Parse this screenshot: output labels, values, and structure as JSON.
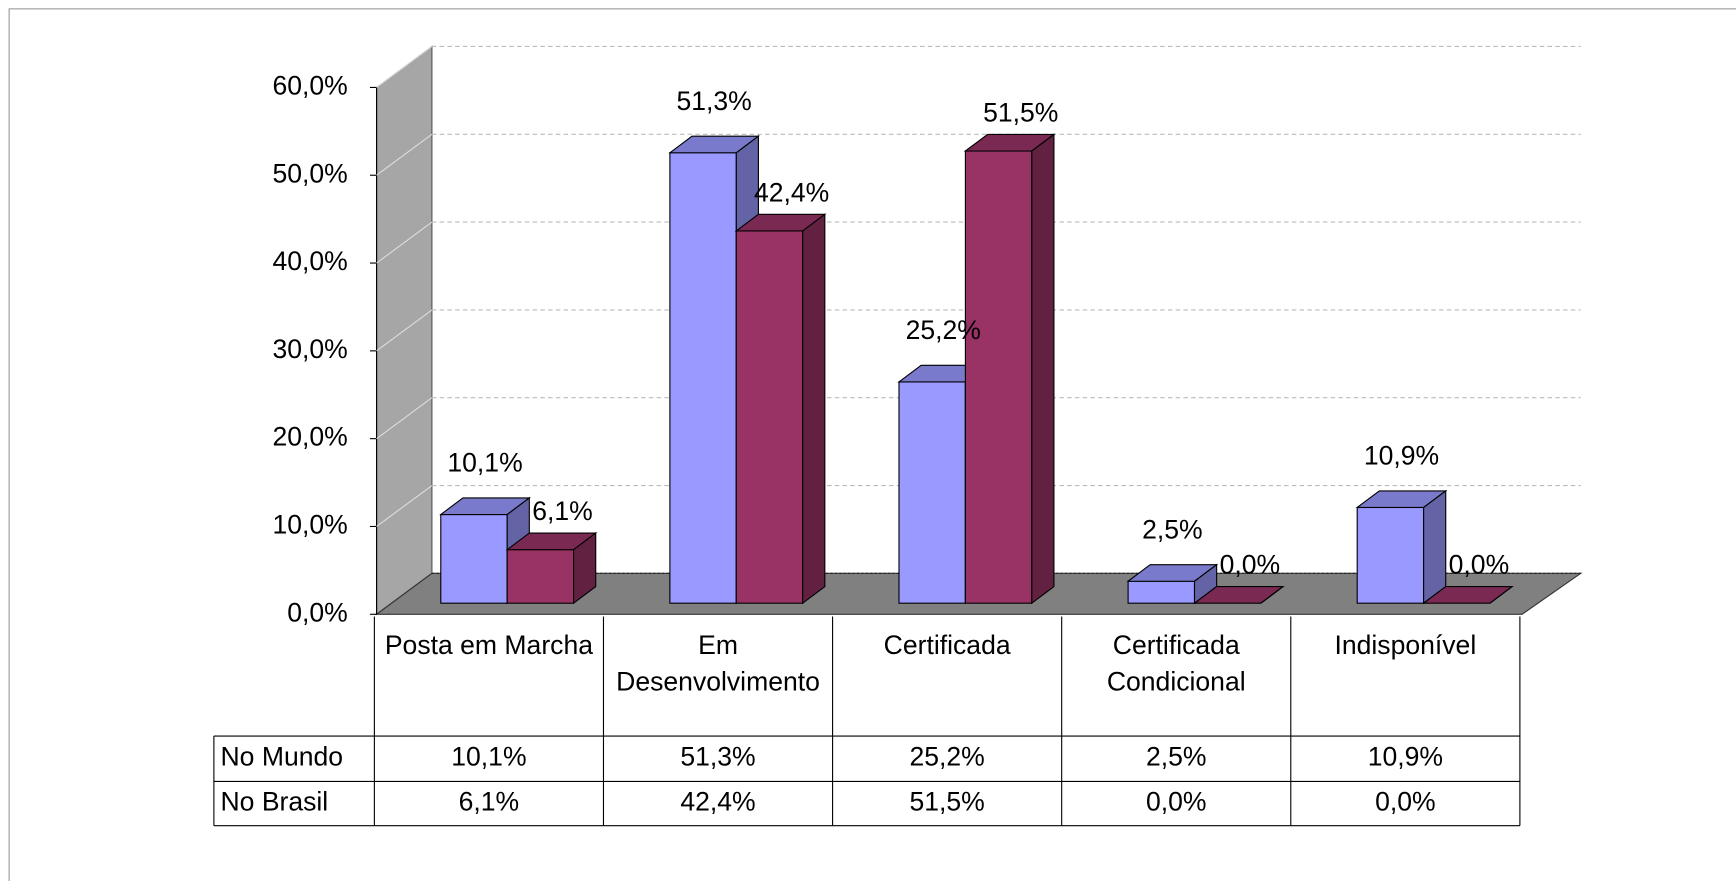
{
  "chart_data": {
    "type": "bar3d",
    "categories": [
      "Posta em Marcha",
      "Em Desenvolvimento",
      "Certificada",
      "Certificada Condicional",
      "Indisponível"
    ],
    "series": [
      {
        "name": "No Mundo",
        "color": "#9999ff",
        "values": [
          10.1,
          51.3,
          25.2,
          2.5,
          10.9
        ],
        "value_labels": [
          "10,1%",
          "51,3%",
          "25,2%",
          "2,5%",
          "10,9%"
        ]
      },
      {
        "name": "No Brasil",
        "color": "#993366",
        "values": [
          6.1,
          42.4,
          51.5,
          0.0,
          0.0
        ],
        "value_labels": [
          "6,1%",
          "42,4%",
          "51,5%",
          "0,0%",
          "0,0%"
        ]
      }
    ],
    "ylim": [
      0,
      60
    ],
    "yticks": [
      {
        "value": 0,
        "label": "0,0%"
      },
      {
        "value": 10,
        "label": "10,0%"
      },
      {
        "value": 20,
        "label": "20,0%"
      },
      {
        "value": 30,
        "label": "30,0%"
      },
      {
        "value": 40,
        "label": "40,0%"
      },
      {
        "value": 50,
        "label": "50,0%"
      },
      {
        "value": 60,
        "label": "60,0%"
      }
    ],
    "grid": true,
    "data_table": true
  }
}
